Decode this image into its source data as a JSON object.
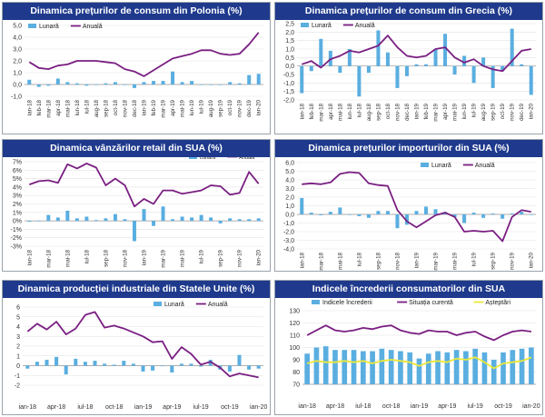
{
  "chart_data": [
    {
      "type": "bar+line",
      "title": "Dinamica prețurilor de consum din Polonia (%)",
      "legend": [
        "Lunară",
        "Anuală"
      ],
      "legend_position": "top-left",
      "ylim": [
        -1,
        5
      ],
      "yticks": [
        -1,
        0,
        1,
        2,
        3,
        4,
        5
      ],
      "ytick_labels": [
        "-1,0",
        "0,0",
        "1,0",
        "2,0",
        "3,0",
        "4,0",
        "5,0"
      ],
      "x_label_mode": "rotated",
      "categories": [
        "ian-18",
        "feb-18",
        "mar-18",
        "apr-18",
        "mai-18",
        "iun-18",
        "iul-18",
        "aug-18",
        "sep-18",
        "oct-18",
        "nov-18",
        "dec-18",
        "ian-19",
        "feb-19",
        "mar-19",
        "apr-19",
        "mai-19",
        "iun-19",
        "iul-19",
        "aug-19",
        "sep-19",
        "oct-19",
        "nov-19",
        "dec-19",
        "ian-20"
      ],
      "x_labels": [
        "ian-18",
        "feb-18",
        "mar-18",
        "apr-18",
        "mai-18",
        "iun-18",
        "iul-18",
        "aug-18",
        "sep-18",
        "oct-18",
        "nov-18",
        "dec-18",
        "ian-19",
        "feb-19",
        "mar-19",
        "apr-19",
        "mai-19",
        "iun-19",
        "iul-19",
        "aug-19",
        "sep-19",
        "oct-19",
        "nov-19",
        "dec-19",
        "ian-20"
      ],
      "series": [
        {
          "name": "Lunară",
          "kind": "bar",
          "values": [
            0.4,
            -0.2,
            -0.1,
            0.5,
            0.2,
            0.1,
            -0.1,
            0.0,
            0.1,
            0.2,
            0.0,
            -0.3,
            0.2,
            0.3,
            0.3,
            1.1,
            0.2,
            0.3,
            0.0,
            0.0,
            0.0,
            0.2,
            0.1,
            0.8,
            0.9
          ]
        },
        {
          "name": "Anuală",
          "kind": "line",
          "values": [
            1.9,
            1.4,
            1.3,
            1.6,
            1.7,
            2.0,
            2.0,
            2.0,
            1.9,
            1.8,
            1.3,
            1.1,
            0.7,
            1.2,
            1.7,
            2.2,
            2.4,
            2.6,
            2.9,
            2.9,
            2.6,
            2.5,
            2.6,
            3.4,
            4.4
          ]
        }
      ]
    },
    {
      "type": "bar+line",
      "title": "Dinamica prețurilor de consum din Grecia (%)",
      "legend": [
        "Lunară",
        "Anuală"
      ],
      "legend_position": "top-left",
      "ylim": [
        -2,
        2.5
      ],
      "yticks": [
        -2,
        -1.5,
        -1,
        -0.5,
        0,
        0.5,
        1,
        1.5,
        2,
        2.5
      ],
      "ytick_labels": [
        "-2,0",
        "-1,5",
        "-1,0",
        "-0,5",
        "0,0",
        "0,5",
        "1,0",
        "1,5",
        "2,0",
        "2,5"
      ],
      "x_label_mode": "rotated",
      "categories": [
        "ian-18",
        "feb-18",
        "mar-18",
        "apr-18",
        "mai-18",
        "iun-18",
        "iul-18",
        "aug-18",
        "sep-18",
        "oct-18",
        "nov-18",
        "dec-18",
        "ian-19",
        "feb-19",
        "mar-19",
        "apr-19",
        "mai-19",
        "iun-19",
        "iul-19",
        "aug-19",
        "sep-19",
        "oct-19",
        "nov-19",
        "dec-19",
        "ian-20"
      ],
      "x_labels": [
        "ian-18",
        "feb-18",
        "mar-18",
        "apr-18",
        "mai-18",
        "iun-18",
        "iul-18",
        "aug-18",
        "sep-18",
        "oct-18",
        "nov-18",
        "dec-18",
        "ian-19",
        "feb-19",
        "mar-19",
        "apr-19",
        "mai-19",
        "iun-19",
        "iul-19",
        "aug-19",
        "sep-19",
        "oct-19",
        "nov-19",
        "dec-19",
        "ian-20"
      ],
      "series": [
        {
          "name": "Lunară",
          "kind": "bar",
          "values": [
            -1.6,
            -0.3,
            1.6,
            0.9,
            -0.4,
            1.0,
            -1.8,
            -0.4,
            2.1,
            0.8,
            -1.3,
            -0.6,
            0.1,
            0.1,
            1.0,
            1.9,
            -0.5,
            0.6,
            -1.0,
            0.5,
            -1.3,
            -0.3,
            2.2,
            0.1,
            -1.7
          ]
        },
        {
          "name": "Anuală",
          "kind": "line",
          "values": [
            0.1,
            0.3,
            -0.1,
            0.4,
            0.6,
            0.9,
            0.8,
            1.0,
            1.2,
            1.8,
            1.1,
            0.6,
            0.5,
            0.6,
            1.0,
            1.1,
            0.5,
            0.2,
            0.4,
            0.0,
            -0.2,
            -0.3,
            0.3,
            0.9,
            1.0
          ]
        }
      ]
    },
    {
      "type": "bar+line",
      "title": "Dinamica vânzărilor retail din SUA (%)",
      "legend": [
        "Lunară",
        "Anuală"
      ],
      "legend_position": "top-right",
      "ylim": [
        -3,
        7
      ],
      "yticks": [
        -3,
        -2,
        -1,
        0,
        1,
        2,
        3,
        4,
        5,
        6,
        7
      ],
      "ytick_labels": [
        "-3%",
        "-2%",
        "-1%",
        "0%",
        "1%",
        "2%",
        "3%",
        "4%",
        "5%",
        "6%",
        "7%"
      ],
      "x_label_mode": "rotated",
      "categories": [
        "ian-18",
        "feb-18",
        "mar-18",
        "apr-18",
        "mai-18",
        "iun-18",
        "iul-18",
        "aug-18",
        "sep-18",
        "oct-18",
        "nov-18",
        "dec-18",
        "ian-19",
        "feb-19",
        "mar-19",
        "apr-19",
        "mai-19",
        "iun-19",
        "iul-19",
        "aug-19",
        "sep-19",
        "oct-19",
        "nov-19",
        "dec-19",
        "ian-20"
      ],
      "x_labels": [
        "ian-18",
        "",
        "mar-18",
        "",
        "mai-18",
        "",
        "iul-18",
        "",
        "sep-18",
        "",
        "nov-18",
        "",
        "ian-19",
        "",
        "mar-19",
        "",
        "mai-19",
        "",
        "iul-19",
        "",
        "sep-19",
        "",
        "nov-19",
        "",
        "ian-20"
      ],
      "series": [
        {
          "name": "Lunară",
          "kind": "bar",
          "values": [
            -0.1,
            0.0,
            0.7,
            0.4,
            1.2,
            0.3,
            0.5,
            0.1,
            0.3,
            0.8,
            0.2,
            -2.4,
            1.4,
            -0.6,
            1.7,
            0.2,
            0.5,
            0.4,
            0.7,
            0.4,
            -0.3,
            0.3,
            0.2,
            0.2,
            0.3
          ]
        },
        {
          "name": "Anuală",
          "kind": "line",
          "values": [
            4.3,
            4.7,
            4.8,
            4.5,
            6.7,
            6.2,
            6.8,
            6.3,
            4.2,
            5.0,
            4.2,
            1.7,
            2.6,
            2.0,
            3.6,
            3.6,
            3.2,
            3.4,
            3.6,
            4.2,
            4.1,
            3.1,
            3.3,
            5.8,
            4.4
          ]
        }
      ]
    },
    {
      "type": "bar+line",
      "title": "Dinamica prețurilor importurilor din SUA (%)",
      "legend": [
        "Lunară",
        "Anuală"
      ],
      "legend_position": "top-right",
      "ylim": [
        -4,
        6
      ],
      "yticks": [
        -4,
        -3,
        -2,
        -1,
        0,
        1,
        2,
        3,
        4,
        5,
        6
      ],
      "ytick_labels": [
        "-4,0",
        "-3,0",
        "-2,0",
        "-1,0",
        "0,0",
        "1,0",
        "2,0",
        "3,0",
        "4,0",
        "5,0",
        "6,0"
      ],
      "x_label_mode": "rotated",
      "categories": [
        "ian-18",
        "feb-18",
        "mar-18",
        "apr-18",
        "mai-18",
        "iun-18",
        "iul-18",
        "aug-18",
        "sep-18",
        "oct-18",
        "nov-18",
        "dec-18",
        "ian-19",
        "feb-19",
        "mar-19",
        "apr-19",
        "mai-19",
        "iun-19",
        "iul-19",
        "aug-19",
        "sep-19",
        "oct-19",
        "nov-19",
        "dec-19",
        "ian-20"
      ],
      "x_labels": [
        "ian-18",
        "",
        "mar-18",
        "",
        "mai-18",
        "",
        "iul-18",
        "",
        "sep-18",
        "",
        "nov-18",
        "",
        "ian-19",
        "",
        "mar-19",
        "",
        "mai-19",
        "",
        "iul-19",
        "",
        "sep-19",
        "",
        "nov-19",
        "",
        "ian-20"
      ],
      "series": [
        {
          "name": "Lunară",
          "kind": "bar",
          "values": [
            1.9,
            0.2,
            -0.1,
            0.3,
            0.8,
            0.0,
            -0.2,
            -0.4,
            0.4,
            0.4,
            -1.6,
            -1.2,
            0.4,
            0.9,
            0.6,
            0.3,
            -0.3,
            -1.0,
            0.2,
            -0.4,
            0.1,
            -0.5,
            0.1,
            0.3,
            0.0
          ]
        },
        {
          "name": "Anuală",
          "kind": "line",
          "values": [
            3.5,
            3.6,
            3.5,
            3.7,
            4.7,
            4.9,
            4.8,
            3.6,
            3.4,
            3.3,
            0.5,
            -0.8,
            -1.5,
            -0.8,
            -0.1,
            0.2,
            -0.3,
            -2.0,
            -1.9,
            -2.0,
            -1.9,
            -3.1,
            -0.3,
            0.5,
            0.3
          ]
        }
      ]
    },
    {
      "type": "bar+line",
      "title": "Dinamica producției industriale din Statele Unite (%)",
      "legend": [
        "Lunară",
        "Anuală"
      ],
      "legend_position": "top-right",
      "ylim": [
        -2,
        6
      ],
      "yticks": [
        -2,
        -1,
        0,
        1,
        2,
        3,
        4,
        5,
        6
      ],
      "ytick_labels": [
        "-2",
        "-1",
        "0",
        "1",
        "2",
        "3",
        "4",
        "5",
        "6"
      ],
      "x_label_mode": "flat",
      "categories": [
        "ian-18",
        "feb-18",
        "mar-18",
        "apr-18",
        "mai-18",
        "iun-18",
        "iul-18",
        "aug-18",
        "sep-18",
        "oct-18",
        "nov-18",
        "dec-18",
        "ian-19",
        "feb-19",
        "mar-19",
        "apr-19",
        "mai-19",
        "iun-19",
        "iul-19",
        "aug-19",
        "sep-19",
        "oct-19",
        "nov-19",
        "dec-19",
        "ian-20"
      ],
      "x_labels": [
        "ian-18",
        "",
        "",
        "apr-18",
        "",
        "",
        "iul-18",
        "",
        "",
        "oct-18",
        "",
        "",
        "ian-19",
        "",
        "",
        "apr-19",
        "",
        "",
        "iul-19",
        "",
        "",
        "oct-19",
        "",
        "",
        "ian-20"
      ],
      "series": [
        {
          "name": "Lunară",
          "kind": "bar",
          "values": [
            -0.3,
            0.4,
            0.6,
            0.9,
            -0.9,
            0.7,
            0.4,
            0.5,
            0.2,
            0.1,
            0.5,
            0.2,
            -0.6,
            -0.5,
            0.0,
            -0.7,
            0.2,
            0.2,
            -0.1,
            0.6,
            -0.4,
            -0.6,
            1.1,
            -0.4,
            -0.3
          ]
        },
        {
          "name": "Anuală",
          "kind": "line",
          "values": [
            3.5,
            4.3,
            3.7,
            4.5,
            3.2,
            3.8,
            5.2,
            5.5,
            3.9,
            4.1,
            3.8,
            3.4,
            3.0,
            2.4,
            2.5,
            0.7,
            1.9,
            1.2,
            0.1,
            0.4,
            -0.2,
            -1.1,
            -0.8,
            -1.0,
            -1.2
          ]
        }
      ]
    },
    {
      "type": "bar+line",
      "title": "Indicele încrederii consumatorilor din SUA",
      "legend": [
        "Indicele încrederii",
        "Situația curentă",
        "Așteptări"
      ],
      "legend_position": "top",
      "ylim": [
        70,
        130
      ],
      "yticks": [
        70,
        80,
        90,
        100,
        110,
        120,
        130
      ],
      "ytick_labels": [
        "70",
        "80",
        "90",
        "100",
        "110",
        "120",
        "130"
      ],
      "x_label_mode": "flat",
      "categories": [
        "ian-18",
        "feb-18",
        "mar-18",
        "apr-18",
        "mai-18",
        "iun-18",
        "iul-18",
        "aug-18",
        "sep-18",
        "oct-18",
        "nov-18",
        "dec-18",
        "ian-19",
        "feb-19",
        "mar-19",
        "apr-19",
        "mai-19",
        "iun-19",
        "iul-19",
        "aug-19",
        "sep-19",
        "oct-19",
        "nov-19",
        "dec-19",
        "ian-20"
      ],
      "x_labels": [
        "ian-18",
        "",
        "",
        "apr-18",
        "",
        "",
        "iul-18",
        "",
        "",
        "oct-18",
        "",
        "",
        "ian-19",
        "",
        "",
        "apr-19",
        "",
        "",
        "iul-19",
        "",
        "",
        "oct-19",
        "",
        "",
        "ian-20"
      ],
      "series": [
        {
          "name": "Indicele încrederii",
          "kind": "bar",
          "values": [
            95,
            100,
            101,
            98,
            98,
            98,
            97,
            97,
            99,
            98,
            97,
            96,
            91,
            95,
            97,
            96,
            98,
            97,
            99,
            96,
            90,
            96,
            98,
            99,
            100
          ]
        },
        {
          "name": "Situația curentă",
          "kind": "line",
          "values": [
            110,
            114,
            118,
            114,
            113,
            114,
            116,
            115,
            117,
            118,
            114,
            112,
            111,
            114,
            113,
            113,
            110,
            112,
            113,
            109,
            106,
            110,
            113,
            114,
            113
          ]
        },
        {
          "name": "Așteptări",
          "kind": "line",
          "values": [
            87,
            89,
            88,
            88,
            89,
            88,
            89,
            87,
            89,
            90,
            89,
            88,
            85,
            88,
            89,
            88,
            91,
            90,
            92,
            88,
            83,
            87,
            88,
            89,
            92
          ]
        }
      ]
    }
  ]
}
